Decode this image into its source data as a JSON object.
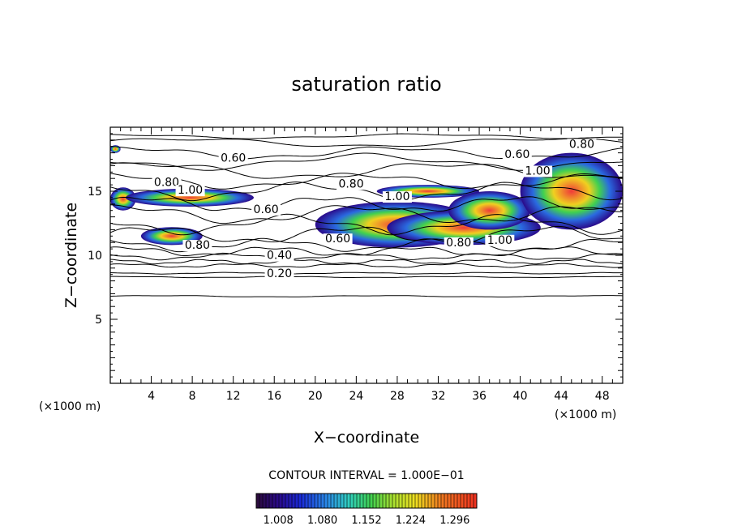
{
  "chart_data": {
    "type": "contour",
    "title": "saturation ratio",
    "xlabel": "X−coordinate",
    "ylabel": "Z−coordinate",
    "x_unit": "(×1000 m)",
    "z_unit": "(×1000 m)",
    "xlim": [
      0,
      50
    ],
    "ylim": [
      0,
      20
    ],
    "x_ticks": [
      4,
      8,
      12,
      16,
      20,
      24,
      28,
      32,
      36,
      40,
      44,
      48
    ],
    "x_tick_labels": [
      "4",
      "8",
      "12",
      "16",
      "20",
      "24",
      "28",
      "32",
      "36",
      "40",
      "44",
      "48"
    ],
    "y_ticks": [
      5,
      10,
      15
    ],
    "y_tick_labels": [
      "5",
      "10",
      "15"
    ],
    "contour_interval_text": "CONTOUR INTERVAL = 1.000E−01",
    "contour_levels": [
      {
        "label": "0.20",
        "x": 16.5,
        "z": 8.3
      },
      {
        "label": "0.40",
        "x": 16.5,
        "z": 9.7
      },
      {
        "label": "0.60",
        "x": 15.2,
        "z": 13.3
      },
      {
        "label": "0.60",
        "x": 12.0,
        "z": 17.3
      },
      {
        "label": "0.60",
        "x": 22.2,
        "z": 11.0
      },
      {
        "label": "0.60",
        "x": 39.7,
        "z": 17.6
      },
      {
        "label": "0.80",
        "x": 5.5,
        "z": 15.4
      },
      {
        "label": "0.80",
        "x": 8.5,
        "z": 10.5
      },
      {
        "label": "0.80",
        "x": 23.5,
        "z": 15.3
      },
      {
        "label": "0.80",
        "x": 34.0,
        "z": 10.7
      },
      {
        "label": "0.80",
        "x": 46.0,
        "z": 18.4
      },
      {
        "label": "1.00",
        "x": 7.8,
        "z": 14.8
      },
      {
        "label": "1.00",
        "x": 28.0,
        "z": 14.3
      },
      {
        "label": "1.00",
        "x": 38.0,
        "z": 10.9
      },
      {
        "label": "1.00",
        "x": 41.7,
        "z": 16.3
      }
    ],
    "colorbar": {
      "ticks": [
        1.008,
        1.08,
        1.152,
        1.224,
        1.296
      ],
      "tick_labels": [
        "1.008",
        "1.080",
        "1.152",
        "1.224",
        "1.296"
      ]
    },
    "supersaturation_regions": [
      {
        "x": [
          0,
          2.5
        ],
        "z": [
          13.5,
          15.3
        ]
      },
      {
        "x": [
          1.5,
          14
        ],
        "z": [
          13.8,
          15.2
        ]
      },
      {
        "x": [
          3,
          9
        ],
        "z": [
          10.8,
          12.2
        ]
      },
      {
        "x": [
          20,
          36
        ],
        "z": [
          10.6,
          14.2
        ]
      },
      {
        "x": [
          27,
          42
        ],
        "z": [
          10.8,
          13.5
        ]
      },
      {
        "x": [
          26,
          36
        ],
        "z": [
          14.5,
          15.5
        ]
      },
      {
        "x": [
          33,
          41
        ],
        "z": [
          12.0,
          15.0
        ]
      },
      {
        "x": [
          40,
          50
        ],
        "z": [
          12.0,
          18.0
        ]
      },
      {
        "x": [
          0,
          1
        ],
        "z": [
          18.0,
          18.6
        ]
      }
    ],
    "grid": false
  }
}
